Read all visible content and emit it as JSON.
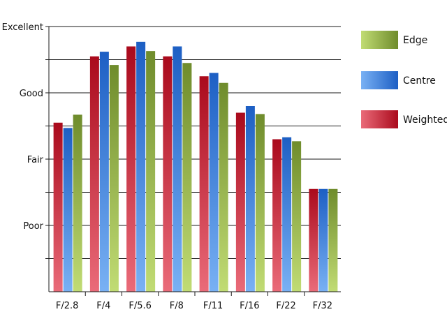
{
  "chart_data": {
    "type": "bar",
    "categories": [
      "F/2.8",
      "F/4",
      "F/5.6",
      "F/8",
      "F/11",
      "F/16",
      "F/22",
      "F/32"
    ],
    "y_tick_labels": [
      "Poor",
      "Fair",
      "Good",
      "Excellent"
    ],
    "y_tick_values": [
      1,
      2,
      3,
      4
    ],
    "ylim": [
      0,
      4
    ],
    "grid": true,
    "legend_position": "right",
    "series": [
      {
        "name": "Weighted",
        "values": [
          2.55,
          3.55,
          3.7,
          3.55,
          3.25,
          2.7,
          2.3,
          1.55
        ],
        "color_dark": "#aa0a1c",
        "color_light": "#ea6b79"
      },
      {
        "name": "Centre",
        "values": [
          2.47,
          3.62,
          3.77,
          3.7,
          3.3,
          2.8,
          2.33,
          1.55
        ],
        "color_dark": "#1d5fc4",
        "color_light": "#79b1f4"
      },
      {
        "name": "Edge",
        "values": [
          2.67,
          3.42,
          3.63,
          3.45,
          3.15,
          2.68,
          2.27,
          1.55
        ],
        "color_dark": "#6f8c2c",
        "color_light": "#c1dc74"
      }
    ],
    "legend_order": [
      "Edge",
      "Centre",
      "Weighted"
    ]
  }
}
